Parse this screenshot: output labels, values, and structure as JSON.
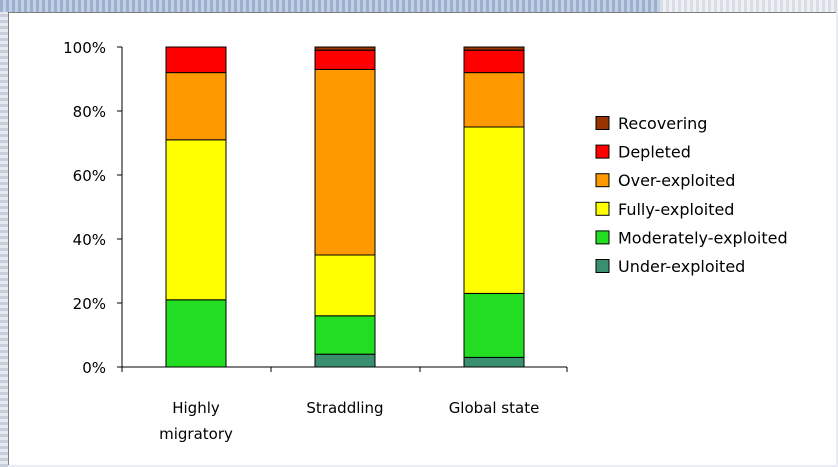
{
  "chart_data": {
    "type": "bar",
    "stacked": true,
    "categories": [
      "Highly\nmigratory",
      "Straddling",
      "Global state"
    ],
    "series": [
      {
        "name": "Under-exploited",
        "color": "#3a8f6e",
        "values": [
          0,
          4,
          3
        ]
      },
      {
        "name": "Moderately-exploited",
        "color": "#22dd22",
        "values": [
          21,
          12,
          20
        ]
      },
      {
        "name": "Fully-exploited",
        "color": "#ffff00",
        "values": [
          50,
          19,
          52
        ]
      },
      {
        "name": "Over-exploited",
        "color": "#ff9900",
        "values": [
          21,
          58,
          17
        ]
      },
      {
        "name": "Depleted",
        "color": "#ff0000",
        "values": [
          8,
          6,
          7
        ]
      },
      {
        "name": "Recovering",
        "color": "#993300",
        "values": [
          0,
          1,
          1
        ]
      }
    ],
    "legend_order": [
      "Recovering",
      "Depleted",
      "Over-exploited",
      "Fully-exploited",
      "Moderately-exploited",
      "Under-exploited"
    ],
    "yticks": [
      "0%",
      "20%",
      "40%",
      "60%",
      "80%",
      "100%"
    ],
    "ylim": [
      0,
      100
    ],
    "legend_position": "right",
    "grid": false
  }
}
